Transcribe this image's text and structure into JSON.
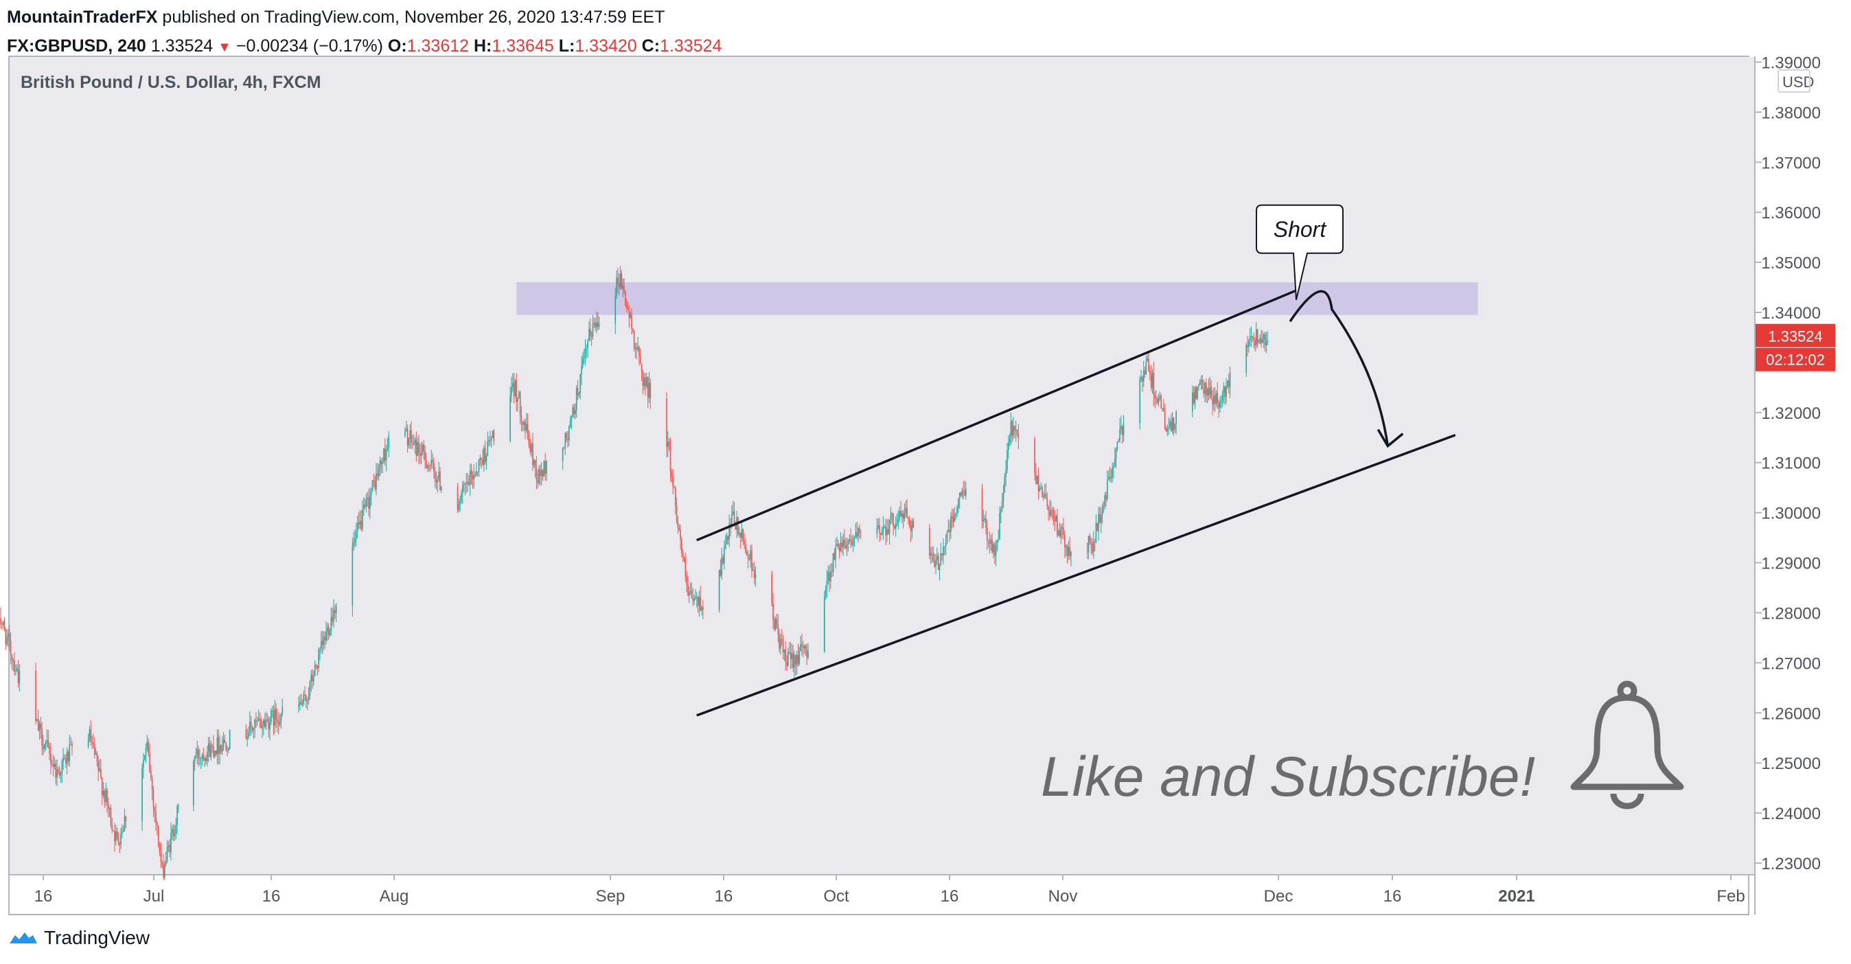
{
  "header": {
    "author": "MountainTraderFX",
    "published_text": " published on TradingView.com, November 26, 2020 13:47:59 EET",
    "symbol": "FX:GBPUSD, 240",
    "last": "1.33524",
    "change": "−0.00234 (−0.17%)",
    "o_label": "O:",
    "o_value": "1.33612",
    "h_label": "H:",
    "h_value": "1.33645",
    "l_label": "L:",
    "l_value": "1.33420",
    "c_label": "C:",
    "c_value": "1.33524"
  },
  "chart_data": {
    "type": "candlestick",
    "title": "British Pound / U.S. Dollar, 4h, FXCM",
    "currency": "USD",
    "ylim": [
      1.2275,
      1.3915
    ],
    "y_ticks": [
      "1.39000",
      "1.38000",
      "1.37000",
      "1.36000",
      "1.35000",
      "1.34000",
      "1.33000",
      "1.32000",
      "1.31000",
      "1.30000",
      "1.29000",
      "1.28000",
      "1.27000",
      "1.26000",
      "1.25000",
      "1.24000",
      "1.23000"
    ],
    "x_ticks": [
      "16",
      "Jul",
      "16",
      "Aug",
      "Sep",
      "16",
      "Oct",
      "16",
      "Nov",
      "Dec",
      "16",
      "2021",
      "Feb"
    ],
    "price_label": "1.33524",
    "countdown_label": "02:12:02",
    "colors": {
      "up": "#26a69a",
      "down": "#ef5350",
      "zone": "#c9c1e3",
      "last": "#e53935"
    },
    "path": [
      {
        "date": "2020-06-10",
        "price": 1.281
      },
      {
        "date": "2020-06-14",
        "price": 1.262
      },
      {
        "date": "2020-06-18",
        "price": 1.248
      },
      {
        "date": "2020-06-22",
        "price": 1.257
      },
      {
        "date": "2020-06-26",
        "price": 1.234
      },
      {
        "date": "2020-06-30",
        "price": 1.253
      },
      {
        "date": "2020-07-02",
        "price": 1.228
      },
      {
        "date": "2020-07-06",
        "price": 1.251
      },
      {
        "date": "2020-07-14",
        "price": 1.257
      },
      {
        "date": "2020-07-21",
        "price": 1.262
      },
      {
        "date": "2020-07-28",
        "price": 1.296
      },
      {
        "date": "2020-08-02",
        "price": 1.318
      },
      {
        "date": "2020-08-06",
        "price": 1.311
      },
      {
        "date": "2020-08-10",
        "price": 1.301
      },
      {
        "date": "2020-08-14",
        "price": 1.312
      },
      {
        "date": "2020-08-18",
        "price": 1.325
      },
      {
        "date": "2020-08-21",
        "price": 1.307
      },
      {
        "date": "2020-08-25",
        "price": 1.315
      },
      {
        "date": "2020-08-28",
        "price": 1.336
      },
      {
        "date": "2020-09-01",
        "price": 1.347
      },
      {
        "date": "2020-09-04",
        "price": 1.327
      },
      {
        "date": "2020-09-07",
        "price": 1.317
      },
      {
        "date": "2020-09-10",
        "price": 1.283
      },
      {
        "date": "2020-09-13",
        "price": 1.281
      },
      {
        "date": "2020-09-16",
        "price": 1.299
      },
      {
        "date": "2020-09-21",
        "price": 1.281
      },
      {
        "date": "2020-09-23",
        "price": 1.27
      },
      {
        "date": "2020-09-26",
        "price": 1.273
      },
      {
        "date": "2020-09-30",
        "price": 1.294
      },
      {
        "date": "2020-10-05",
        "price": 1.296
      },
      {
        "date": "2020-10-09",
        "price": 1.3
      },
      {
        "date": "2020-10-13",
        "price": 1.289
      },
      {
        "date": "2020-10-17",
        "price": 1.306
      },
      {
        "date": "2020-10-21",
        "price": 1.292
      },
      {
        "date": "2020-10-23",
        "price": 1.317
      },
      {
        "date": "2020-10-27",
        "price": 1.305
      },
      {
        "date": "2020-10-31",
        "price": 1.291
      },
      {
        "date": "2020-11-03",
        "price": 1.294
      },
      {
        "date": "2020-11-07",
        "price": 1.318
      },
      {
        "date": "2020-11-10",
        "price": 1.33
      },
      {
        "date": "2020-11-13",
        "price": 1.316
      },
      {
        "date": "2020-11-17",
        "price": 1.325
      },
      {
        "date": "2020-11-20",
        "price": 1.322
      },
      {
        "date": "2020-11-23",
        "price": 1.335
      },
      {
        "date": "2020-11-26",
        "price": 1.3352
      }
    ],
    "zone": {
      "start": "2020-08-18",
      "end": "2020-12-24",
      "low": 1.3395,
      "high": 1.346
    },
    "channel_upper": [
      {
        "date": "2020-09-11",
        "price": 1.2945
      },
      {
        "date": "2020-11-30",
        "price": 1.3445
      }
    ],
    "channel_lower": [
      {
        "date": "2020-09-11",
        "price": 1.2595
      },
      {
        "date": "2020-12-21",
        "price": 1.3155
      }
    ],
    "projection": [
      {
        "date": "2020-11-29",
        "price": 1.3382
      },
      {
        "date": "2020-12-02",
        "price": 1.342
      },
      {
        "date": "2020-12-12",
        "price": 1.3133
      }
    ],
    "callout": {
      "text": "Short",
      "date": "2020-11-30",
      "price": 1.3425
    },
    "annotation": "Like and Subscribe!"
  },
  "footer": {
    "brand": "TradingView"
  }
}
